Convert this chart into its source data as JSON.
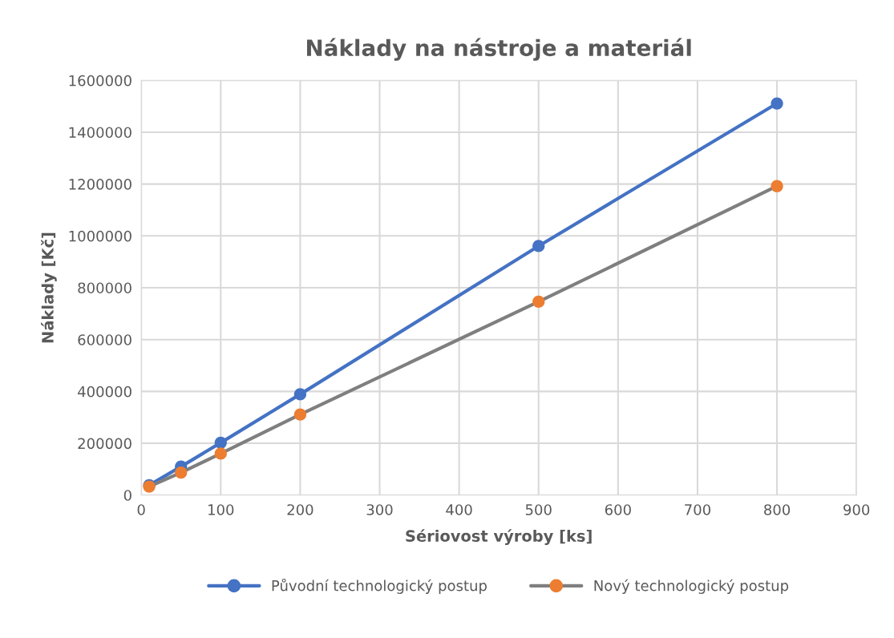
{
  "chart_data": {
    "type": "line",
    "title": "Náklady na nástroje a materiál",
    "xlabel": "Sériovost výroby [ks]",
    "ylabel": "Náklady [Kč]",
    "x": [
      10,
      50,
      100,
      200,
      500,
      800
    ],
    "series": [
      {
        "name": "Původní technologický postup",
        "color": "#4472c4",
        "values": [
          38000,
          110000,
          202000,
          389000,
          961000,
          1511000
        ]
      },
      {
        "name": "Nový technologický postup",
        "color": "#7f7f7f",
        "colors": [
          "#ed7d31",
          "#ed7d31",
          "#ed7d31",
          "#ed7d31",
          "#ed7d31",
          "#ed7d31"
        ],
        "values": [
          33000,
          87000,
          160000,
          311000,
          746000,
          1192000
        ]
      }
    ],
    "xlim": [
      0,
      900
    ],
    "xticks": [
      0,
      100,
      200,
      300,
      400,
      500,
      600,
      700,
      800,
      900
    ],
    "ylim": [
      0,
      1600000
    ],
    "yticks": [
      0,
      200000,
      400000,
      600000,
      800000,
      1000000,
      1200000,
      1400000,
      1600000
    ],
    "grid": true,
    "legend": "bottom",
    "marker": "circle",
    "line_style": "solid"
  }
}
